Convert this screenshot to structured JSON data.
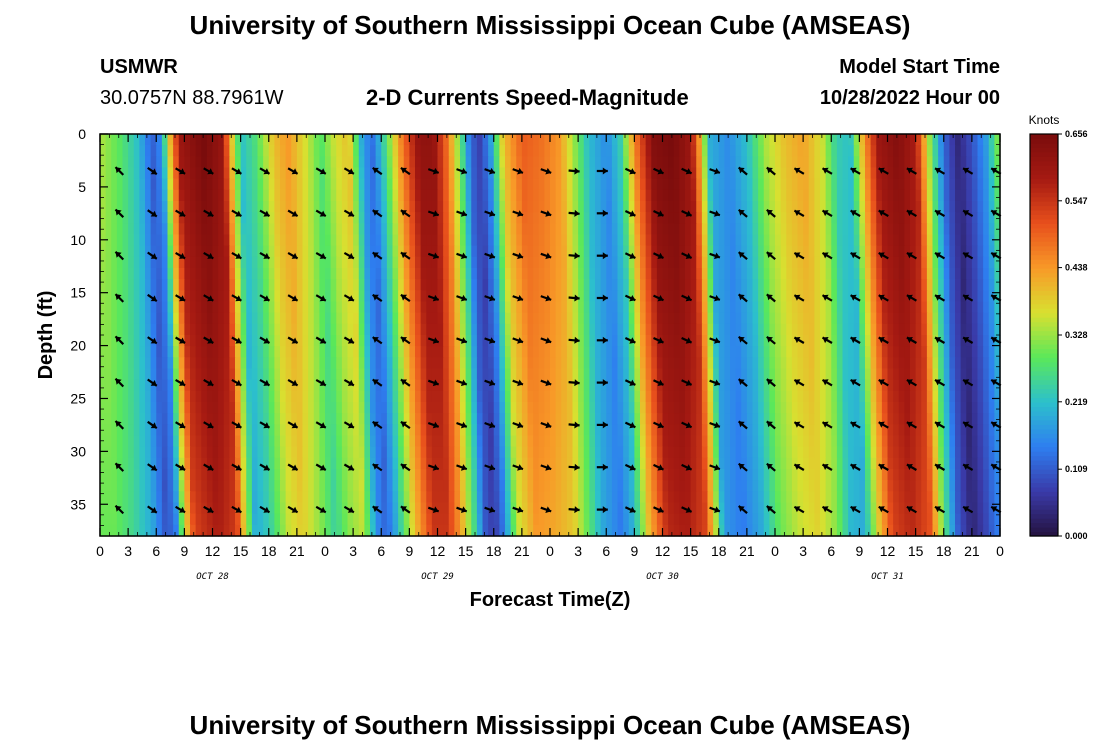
{
  "header": {
    "title": "University of Southern Mississippi Ocean Cube (AMSEAS)",
    "station": "USMWR",
    "coords": "30.0757N  88.7961W",
    "subtitle": "2-D Currents Speed-Magnitude",
    "model_label": "Model Start Time",
    "model_time": "10/28/2022 Hour 00"
  },
  "footer": {
    "title": "University of Southern Mississippi Ocean Cube (AMSEAS)"
  },
  "chart_data": {
    "type": "heatmap",
    "title": "2-D Currents Speed-Magnitude",
    "xlabel": "Forecast Time(Z)",
    "ylabel": "Depth (ft)",
    "x_ticks": [
      "0",
      "3",
      "6",
      "9",
      "12",
      "15",
      "18",
      "21",
      "0",
      "3",
      "6",
      "9",
      "12",
      "15",
      "18",
      "21",
      "0",
      "3",
      "6",
      "9",
      "12",
      "15",
      "18",
      "21",
      "0",
      "3",
      "6",
      "9",
      "12",
      "15",
      "18",
      "21",
      "0"
    ],
    "x_range_hours": [
      0,
      96
    ],
    "day_labels": [
      {
        "label": "OCT 28",
        "hour": 12
      },
      {
        "label": "OCT 29",
        "hour": 36
      },
      {
        "label": "OCT 30",
        "hour": 60
      },
      {
        "label": "OCT 31",
        "hour": 84
      }
    ],
    "y_ticks": [
      "0",
      "5",
      "10",
      "15",
      "20",
      "25",
      "30",
      "35"
    ],
    "y_range_ft": [
      0,
      38
    ],
    "colorbar": {
      "unit": "Knots",
      "range": [
        0.0,
        0.656
      ],
      "ticks": [
        "0.000",
        "0.109",
        "0.219",
        "0.328",
        "0.438",
        "0.547",
        "0.656"
      ],
      "colors": [
        "#24123e",
        "#3a3aa8",
        "#2e7ef0",
        "#2cc0cc",
        "#5ae85a",
        "#d8e030",
        "#f89a28",
        "#e8501c",
        "#a61a12",
        "#7a0c0c"
      ]
    },
    "speed_profile_knots": [
      {
        "h": 0,
        "v": 0.34
      },
      {
        "h": 2,
        "v": 0.29
      },
      {
        "h": 4,
        "v": 0.22
      },
      {
        "h": 5.5,
        "v": 0.11
      },
      {
        "h": 6.5,
        "v": 0.16
      },
      {
        "h": 7.5,
        "v": 0.42
      },
      {
        "h": 8.5,
        "v": 0.6
      },
      {
        "h": 11,
        "v": 0.66
      },
      {
        "h": 13,
        "v": 0.61
      },
      {
        "h": 14,
        "v": 0.4
      },
      {
        "h": 15,
        "v": 0.22
      },
      {
        "h": 16.5,
        "v": 0.27
      },
      {
        "h": 18.5,
        "v": 0.4
      },
      {
        "h": 20,
        "v": 0.44
      },
      {
        "h": 22,
        "v": 0.36
      },
      {
        "h": 23.5,
        "v": 0.28
      },
      {
        "h": 25,
        "v": 0.36
      },
      {
        "h": 26.5,
        "v": 0.4
      },
      {
        "h": 28,
        "v": 0.18
      },
      {
        "h": 29,
        "v": 0.13
      },
      {
        "h": 30,
        "v": 0.22
      },
      {
        "h": 32,
        "v": 0.45
      },
      {
        "h": 34,
        "v": 0.62
      },
      {
        "h": 35.5,
        "v": 0.62
      },
      {
        "h": 37,
        "v": 0.48
      },
      {
        "h": 38.5,
        "v": 0.28
      },
      {
        "h": 39.5,
        "v": 0.12
      },
      {
        "h": 40.5,
        "v": 0.08
      },
      {
        "h": 41.5,
        "v": 0.16
      },
      {
        "h": 43,
        "v": 0.4
      },
      {
        "h": 45,
        "v": 0.5
      },
      {
        "h": 47,
        "v": 0.48
      },
      {
        "h": 49,
        "v": 0.44
      },
      {
        "h": 50.5,
        "v": 0.33
      },
      {
        "h": 52,
        "v": 0.22
      },
      {
        "h": 54,
        "v": 0.16
      },
      {
        "h": 55.5,
        "v": 0.24
      },
      {
        "h": 57,
        "v": 0.46
      },
      {
        "h": 59,
        "v": 0.64
      },
      {
        "h": 61,
        "v": 0.66
      },
      {
        "h": 63,
        "v": 0.6
      },
      {
        "h": 64,
        "v": 0.42
      },
      {
        "h": 65,
        "v": 0.2
      },
      {
        "h": 67,
        "v": 0.16
      },
      {
        "h": 69,
        "v": 0.22
      },
      {
        "h": 71,
        "v": 0.34
      },
      {
        "h": 73,
        "v": 0.4
      },
      {
        "h": 75,
        "v": 0.43
      },
      {
        "h": 77,
        "v": 0.36
      },
      {
        "h": 78.5,
        "v": 0.24
      },
      {
        "h": 80,
        "v": 0.22
      },
      {
        "h": 81.5,
        "v": 0.44
      },
      {
        "h": 83,
        "v": 0.6
      },
      {
        "h": 85,
        "v": 0.64
      },
      {
        "h": 87,
        "v": 0.58
      },
      {
        "h": 88.5,
        "v": 0.32
      },
      {
        "h": 90,
        "v": 0.12
      },
      {
        "h": 91.5,
        "v": 0.04
      },
      {
        "h": 93,
        "v": 0.1
      },
      {
        "h": 94.5,
        "v": 0.18
      },
      {
        "h": 96,
        "v": 0.34
      }
    ],
    "arrow_hours": [
      2.5,
      6,
      9,
      12,
      15,
      18,
      21,
      24,
      27,
      30,
      33,
      36,
      39,
      42,
      45,
      48,
      51,
      54,
      57,
      60,
      63,
      66,
      69,
      72,
      75,
      78,
      81,
      84,
      87,
      90,
      93,
      96
    ],
    "arrow_depths_ft": [
      3.5,
      7.5,
      11.5,
      15.5,
      19.5,
      23.5,
      27.5,
      31.5,
      35.5
    ],
    "arrow_dirs_deg": [
      315,
      125,
      120,
      120,
      120,
      120,
      120,
      120,
      120,
      305,
      305,
      110,
      110,
      110,
      110,
      110,
      95,
      90,
      115,
      115,
      115,
      110,
      310,
      310,
      300,
      300,
      300,
      300,
      300,
      300,
      300,
      300
    ]
  }
}
